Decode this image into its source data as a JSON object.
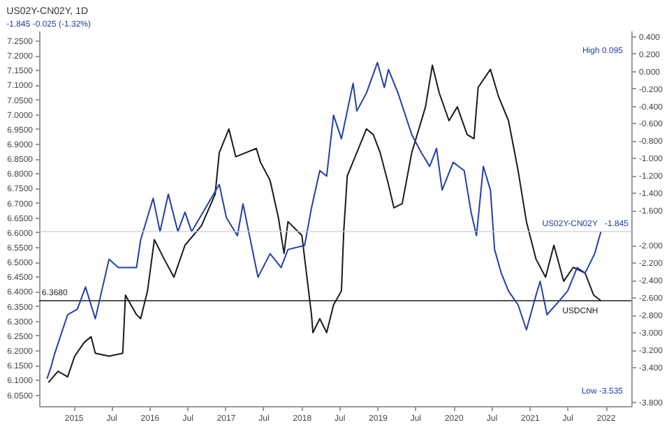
{
  "chart_data": {
    "type": "line",
    "title": "US02Y-CN02Y, 1D",
    "subtitle": "-1.845  -0.025 (-1.32%)",
    "series": [
      {
        "name": "USDCNH",
        "color": "#1a1a1a",
        "axis": "y",
        "x": [
          "2014-09-03",
          "2014-10-19",
          "2014-12-04",
          "2015-01-07",
          "2015-02-22",
          "2015-03-27",
          "2015-04-16",
          "2015-06-21",
          "2015-08-26",
          "2015-09-08",
          "2015-10-31",
          "2015-11-20",
          "2015-12-23",
          "2016-01-25",
          "2016-03-12",
          "2016-04-28",
          "2016-06-20",
          "2016-09-07",
          "2016-11-12",
          "2016-12-02",
          "2017-01-17",
          "2017-02-19",
          "2017-05-29",
          "2017-06-18",
          "2017-08-03",
          "2017-09-12",
          "2017-10-09",
          "2017-10-28",
          "2018-01-03",
          "2018-02-18",
          "2018-02-25",
          "2018-03-30",
          "2018-05-02",
          "2018-06-04",
          "2018-07-12",
          "2018-07-23",
          "2018-08-09",
          "2018-09-24",
          "2018-11-09",
          "2018-12-12",
          "2019-01-14",
          "2019-02-23",
          "2019-03-21",
          "2019-04-30",
          "2019-06-15",
          "2019-08-20",
          "2019-09-22",
          "2019-10-25",
          "2019-12-11",
          "2020-01-20",
          "2020-03-07",
          "2020-04-09",
          "2020-04-29",
          "2020-06-27",
          "2020-08-06",
          "2020-09-22",
          "2020-11-07",
          "2020-12-17",
          "2021-02-01",
          "2021-03-19",
          "2021-04-28",
          "2021-06-14",
          "2021-07-30",
          "2021-09-25",
          "2021-11-05",
          "2021-12-10"
        ],
        "values": [
          6.091,
          6.129,
          6.11,
          6.18,
          6.227,
          6.246,
          6.19,
          6.18,
          6.19,
          6.387,
          6.321,
          6.307,
          6.401,
          6.575,
          6.509,
          6.448,
          6.556,
          6.622,
          6.729,
          6.87,
          6.95,
          6.856,
          6.884,
          6.837,
          6.776,
          6.65,
          6.528,
          6.636,
          6.589,
          6.321,
          6.26,
          6.307,
          6.26,
          6.354,
          6.401,
          6.603,
          6.791,
          6.87,
          6.95,
          6.931,
          6.87,
          6.762,
          6.683,
          6.697,
          6.87,
          7.025,
          7.166,
          7.072,
          6.978,
          7.025,
          6.931,
          6.917,
          7.091,
          7.152,
          7.058,
          6.978,
          6.809,
          6.636,
          6.509,
          6.448,
          6.556,
          6.434,
          6.481,
          6.462,
          6.387,
          6.368
        ]
      },
      {
        "name": "US02Y-CN02Y",
        "color": "#2140a8",
        "axis": "y2",
        "x": [
          "2014-08-27",
          "2014-09-15",
          "2014-10-03",
          "2014-12-04",
          "2015-01-20",
          "2015-02-28",
          "2015-04-16",
          "2015-06-21",
          "2015-08-05",
          "2015-10-31",
          "2015-11-20",
          "2016-01-19",
          "2016-02-21",
          "2016-04-01",
          "2016-05-17",
          "2016-06-20",
          "2016-07-22",
          "2016-09-27",
          "2016-12-02",
          "2017-01-05",
          "2017-02-27",
          "2017-03-26",
          "2017-06-06",
          "2017-08-03",
          "2017-09-25",
          "2017-10-28",
          "2018-01-16",
          "2018-02-18",
          "2018-03-30",
          "2018-05-02",
          "2018-06-04",
          "2018-07-12",
          "2018-09-06",
          "2018-09-24",
          "2018-11-09",
          "2019-01-01",
          "2019-02-03",
          "2019-02-23",
          "2019-04-10",
          "2019-06-15",
          "2019-07-31",
          "2019-09-09",
          "2019-10-12",
          "2019-11-08",
          "2019-12-31",
          "2020-02-22",
          "2020-03-26",
          "2020-04-21",
          "2020-05-24",
          "2020-06-27",
          "2020-07-17",
          "2020-08-18",
          "2020-09-22",
          "2020-11-07",
          "2020-12-17",
          "2021-02-01",
          "2021-02-21",
          "2021-03-26",
          "2021-05-24",
          "2021-07-03",
          "2021-08-18",
          "2021-09-25",
          "2021-11-10",
          "2021-12-10"
        ],
        "values": [
          -3.535,
          -3.403,
          -3.244,
          -2.799,
          -2.735,
          -2.481,
          -2.846,
          -2.163,
          -2.258,
          -2.258,
          -1.94,
          -1.463,
          -1.845,
          -1.415,
          -1.845,
          -1.622,
          -1.845,
          -1.574,
          -1.304,
          -1.686,
          -1.892,
          -1.527,
          -2.369,
          -2.099,
          -2.258,
          -2.051,
          -2.004,
          -1.574,
          -1.145,
          -1.209,
          -0.509,
          -0.779,
          -0.143,
          -0.461,
          -0.255,
          0.095,
          -0.191,
          0.016,
          -0.255,
          -0.732,
          -0.938,
          -1.097,
          -0.891,
          -1.368,
          -1.05,
          -1.145,
          -1.622,
          -1.892,
          -1.097,
          -1.368,
          -2.051,
          -2.321,
          -2.528,
          -2.687,
          -2.973,
          -2.576,
          -2.417,
          -2.799,
          -2.64,
          -2.528,
          -2.258,
          -2.321,
          -2.099,
          -1.845
        ]
      }
    ],
    "xlim": [
      "2014-07-20",
      "2022-05-05"
    ],
    "xticks": [
      {
        "value": "2015-01-01",
        "label": "2015"
      },
      {
        "value": "2015-07-01",
        "label": "Jul"
      },
      {
        "value": "2016-01-01",
        "label": "2016"
      },
      {
        "value": "2016-07-01",
        "label": "Jul"
      },
      {
        "value": "2017-01-01",
        "label": "2017"
      },
      {
        "value": "2017-07-01",
        "label": "Jul"
      },
      {
        "value": "2018-01-01",
        "label": "2018"
      },
      {
        "value": "2018-07-01",
        "label": "Jul"
      },
      {
        "value": "2019-01-01",
        "label": "2019"
      },
      {
        "value": "2019-07-01",
        "label": "Jul"
      },
      {
        "value": "2020-01-01",
        "label": "2020"
      },
      {
        "value": "2020-07-01",
        "label": "Jul"
      },
      {
        "value": "2021-01-01",
        "label": "2021"
      },
      {
        "value": "2021-07-01",
        "label": "Jul"
      },
      {
        "value": "2022-01-01",
        "label": "2022"
      }
    ],
    "ylim": [
      6.011,
      7.283
    ],
    "yticks": [
      {
        "value": 6.05,
        "label": "6.0500"
      },
      {
        "value": 6.1,
        "label": "6.1000"
      },
      {
        "value": 6.15,
        "label": "6.1500"
      },
      {
        "value": 6.2,
        "label": "6.2000"
      },
      {
        "value": 6.25,
        "label": "6.2500"
      },
      {
        "value": 6.3,
        "label": "6.3000"
      },
      {
        "value": 6.35,
        "label": "6.3500"
      },
      {
        "value": 6.4,
        "label": "6.4000"
      },
      {
        "value": 6.45,
        "label": "6.4500"
      },
      {
        "value": 6.5,
        "label": "6.5000"
      },
      {
        "value": 6.55,
        "label": "6.5500"
      },
      {
        "value": 6.6,
        "label": "6.6000"
      },
      {
        "value": 6.65,
        "label": "6.6500"
      },
      {
        "value": 6.7,
        "label": "6.7000"
      },
      {
        "value": 6.75,
        "label": "6.7500"
      },
      {
        "value": 6.8,
        "label": "6.8000"
      },
      {
        "value": 6.85,
        "label": "6.8500"
      },
      {
        "value": 6.9,
        "label": "6.9000"
      },
      {
        "value": 6.95,
        "label": "6.9500"
      },
      {
        "value": 7.0,
        "label": "7.0000"
      },
      {
        "value": 7.05,
        "label": "7.0500"
      },
      {
        "value": 7.1,
        "label": "7.1000"
      },
      {
        "value": 7.15,
        "label": "7.1500"
      },
      {
        "value": 7.2,
        "label": "7.2000"
      },
      {
        "value": 7.25,
        "label": "7.2500"
      }
    ],
    "y2lim": [
      -3.848,
      0.461
    ],
    "y2ticks": [
      {
        "value": 0.4,
        "label": "0.400"
      },
      {
        "value": 0.2,
        "label": "0.200"
      },
      {
        "value": 0,
        "label": "0.000"
      },
      {
        "value": -0.2,
        "label": "-0.200"
      },
      {
        "value": -0.4,
        "label": "-0.400"
      },
      {
        "value": -0.6,
        "label": "-0.600"
      },
      {
        "value": -0.8,
        "label": "-0.800"
      },
      {
        "value": -1.0,
        "label": "-1.000"
      },
      {
        "value": -1.2,
        "label": "-1.200"
      },
      {
        "value": -1.4,
        "label": "-1.400"
      },
      {
        "value": -1.6,
        "label": "-1.600"
      },
      {
        "value": -2.0,
        "label": "-2.000"
      },
      {
        "value": -2.2,
        "label": "-2.200"
      },
      {
        "value": -2.4,
        "label": "-2.400"
      },
      {
        "value": -2.6,
        "label": "-2.600"
      },
      {
        "value": -2.8,
        "label": "-2.800"
      },
      {
        "value": -3.0,
        "label": "-3.000"
      },
      {
        "value": -3.2,
        "label": "-3.200"
      },
      {
        "value": -3.4,
        "label": "-3.400"
      },
      {
        "value": -3.8,
        "label": "-3.800"
      }
    ],
    "ref_lines": [
      {
        "axis": "y2",
        "value": -1.845,
        "label": "-1.845",
        "color": "#c8cde0"
      },
      {
        "axis": "y",
        "value": 6.368,
        "label": "6.3680",
        "color": "#1a1a1a"
      }
    ],
    "annotations": [
      "High 0.095",
      "Low -3.535"
    ],
    "grid": false,
    "line_style": "solid",
    "marker": "none"
  }
}
